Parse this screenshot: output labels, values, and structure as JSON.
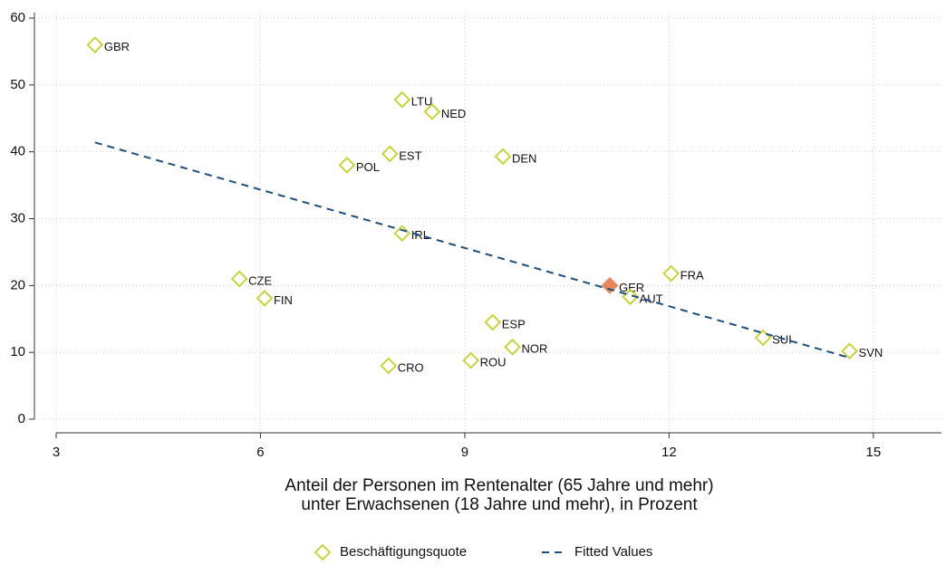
{
  "chart_data": {
    "type": "scatter",
    "xlabel": [
      "Anteil der Personen im Rentenalter (65 Jahre und mehr)",
      "unter Erwachsenen (18 Jahre und mehr), in Prozent"
    ],
    "xlim": [
      3,
      16
    ],
    "xticks": [
      3,
      6,
      9,
      12,
      15
    ],
    "ylim": [
      0,
      60
    ],
    "yticks": [
      0,
      10,
      20,
      30,
      40,
      50,
      60
    ],
    "grid": true,
    "series": [
      {
        "name": "Beschäftigungsquote",
        "color": "#c8d43a",
        "labels": [
          "GBR",
          "LTU",
          "NED",
          "EST",
          "POL",
          "DEN",
          "IRL",
          "CZE",
          "FIN",
          "GER",
          "FRA",
          "AUT",
          "ESP",
          "NOR",
          "ROU",
          "CRO",
          "SUI",
          "SVN"
        ],
        "x": [
          3.57,
          8.08,
          8.52,
          7.9,
          7.27,
          9.56,
          8.08,
          5.69,
          6.06,
          11.13,
          12.03,
          11.43,
          9.41,
          9.7,
          9.09,
          7.88,
          13.38,
          14.65
        ],
        "values": [
          56,
          47.8,
          46,
          39.7,
          38,
          39.3,
          27.8,
          21,
          18.1,
          20,
          21.8,
          18.3,
          14.5,
          10.8,
          8.8,
          8,
          12.2,
          10.2
        ],
        "point_colors": [
          "#c8d43a",
          "#c8d43a",
          "#c8d43a",
          "#c8d43a",
          "#c8d43a",
          "#c8d43a",
          "#c8d43a",
          "#c8d43a",
          "#c8d43a",
          "#e8875a",
          "#c8d43a",
          "#c8d43a",
          "#c8d43a",
          "#c8d43a",
          "#c8d43a",
          "#c8d43a",
          "#c8d43a",
          "#c8d43a"
        ]
      },
      {
        "name": "Fitted Values",
        "color": "#1f4e80",
        "style": "dashed",
        "x": [
          3.57,
          14.65
        ],
        "values": [
          41.4,
          9.2
        ]
      }
    ]
  }
}
